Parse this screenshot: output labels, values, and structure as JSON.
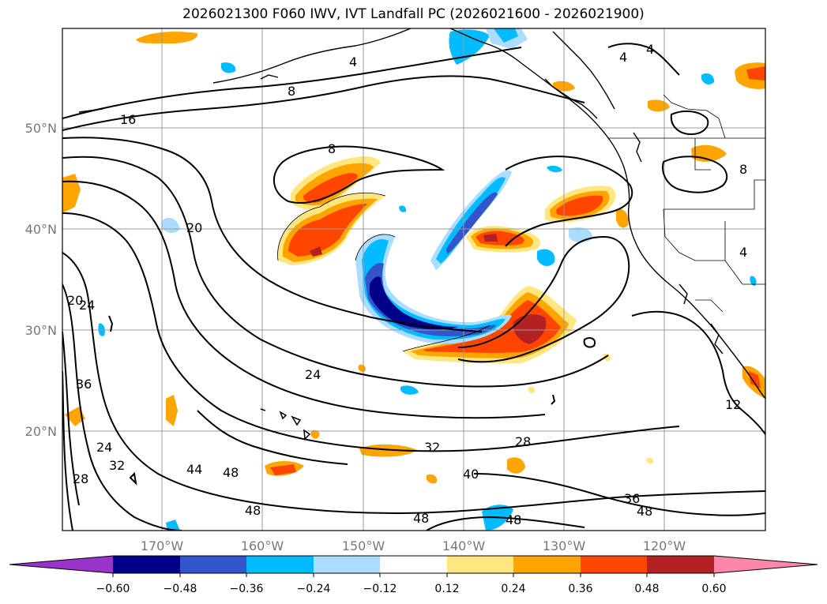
{
  "title": "2026021300 F060 IWV, IVT Landfall PC (2026021600 - 2026021900)",
  "map": {
    "lat_labels": [
      "50°N",
      "40°N",
      "30°N",
      "20°N"
    ],
    "lon_labels": [
      "170°W",
      "160°W",
      "150°W",
      "140°W",
      "130°W",
      "120°W"
    ],
    "contour_labels": [
      "4",
      "4",
      "4",
      "4",
      "8",
      "8",
      "8",
      "16",
      "20",
      "20",
      "24",
      "24",
      "24",
      "28",
      "28",
      "32",
      "32",
      "36",
      "36",
      "40",
      "44",
      "48",
      "48",
      "48",
      "48",
      "48",
      "12"
    ]
  },
  "colorbar": {
    "ticks": [
      "−0.60",
      "−0.48",
      "−0.36",
      "−0.24",
      "−0.12",
      "0.12",
      "0.24",
      "0.36",
      "0.48",
      "0.60"
    ],
    "colors": [
      "#9933cc",
      "#000088",
      "#3355cc",
      "#00bbff",
      "#aaddff",
      "#ffffff",
      "#ffe680",
      "#ffa500",
      "#ff4500",
      "#b22222",
      "#ff88aa"
    ]
  }
}
